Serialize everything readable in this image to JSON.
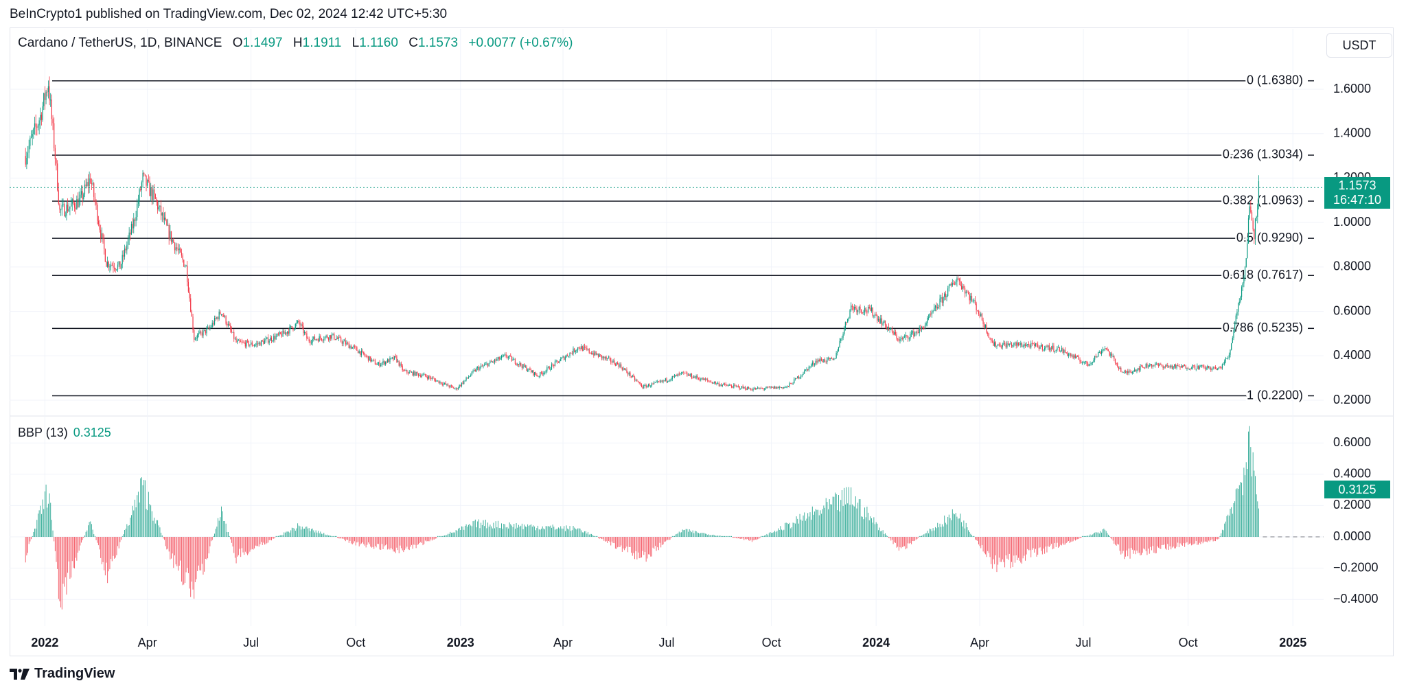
{
  "header": {
    "published_by": "BeInCrypto1 published on TradingView.com, Dec 02, 2024 12:42 UTC+5:30"
  },
  "symbol": {
    "name": "Cardano / TetherUS, 1D, BINANCE",
    "o_label": "O",
    "o": "1.1497",
    "h_label": "H",
    "h": "1.1911",
    "l_label": "L",
    "l": "1.1160",
    "c_label": "C",
    "c": "1.1573",
    "change": "+0.0077 (+0.67%)"
  },
  "currency_button": "USDT",
  "last_price": {
    "value": "1.1573",
    "countdown": "16:47:10"
  },
  "indicator": {
    "name": "BBP (13)",
    "value": "0.3125"
  },
  "footer": {
    "brand": "TradingView"
  },
  "colors": {
    "up": "#089981",
    "down": "#F23645",
    "fib_line": "#131722",
    "grid": "#f0f3fa"
  },
  "chart_data": [
    {
      "type": "candlestick",
      "x_axis": {
        "labels": [
          "2022",
          "Apr",
          "Jul",
          "Oct",
          "2023",
          "Apr",
          "Jul",
          "Oct",
          "2024",
          "Apr",
          "Jul",
          "Oct",
          "2025"
        ],
        "bold": [
          "2022",
          "2023",
          "2024",
          "2025"
        ]
      },
      "y_axis": {
        "ticks": [
          "1.6000",
          "1.4000",
          "1.2000",
          "1.0000",
          "0.8000",
          "0.6000",
          "0.4000",
          "0.2000"
        ],
        "ylim": [
          0.18,
          1.72
        ]
      },
      "fib_levels": [
        {
          "ratio": "0",
          "price": 1.638,
          "label": "0 (1.6380)"
        },
        {
          "ratio": "0.236",
          "price": 1.3034,
          "label": "0.236 (1.3034)"
        },
        {
          "ratio": "0.382",
          "price": 1.0963,
          "label": "0.382 (1.0963)"
        },
        {
          "ratio": "0.5",
          "price": 0.929,
          "label": "0.5 (0.9290)"
        },
        {
          "ratio": "0.618",
          "price": 0.7617,
          "label": "0.618 (0.7617)"
        },
        {
          "ratio": "0.786",
          "price": 0.5235,
          "label": "0.786 (0.5235)"
        },
        {
          "ratio": "1",
          "price": 0.22,
          "label": "1 (0.2200)"
        }
      ],
      "current_price": 1.1573,
      "price_path": [
        [
          "2021-12-15",
          1.3
        ],
        [
          "2021-12-28",
          1.48
        ],
        [
          "2022-01-04",
          1.63
        ],
        [
          "2022-01-10",
          1.3
        ],
        [
          "2022-01-14",
          1.05
        ],
        [
          "2022-01-22",
          1.07
        ],
        [
          "2022-02-01",
          1.1
        ],
        [
          "2022-02-10",
          1.2
        ],
        [
          "2022-02-24",
          0.82
        ],
        [
          "2022-03-08",
          0.8
        ],
        [
          "2022-03-20",
          1.0
        ],
        [
          "2022-03-28",
          1.2
        ],
        [
          "2022-04-08",
          1.1
        ],
        [
          "2022-04-20",
          0.95
        ],
        [
          "2022-05-05",
          0.8
        ],
        [
          "2022-05-12",
          0.48
        ],
        [
          "2022-05-25",
          0.52
        ],
        [
          "2022-06-05",
          0.6
        ],
        [
          "2022-06-18",
          0.46
        ],
        [
          "2022-07-05",
          0.45
        ],
        [
          "2022-07-30",
          0.5
        ],
        [
          "2022-08-12",
          0.55
        ],
        [
          "2022-08-20",
          0.47
        ],
        [
          "2022-09-10",
          0.49
        ],
        [
          "2022-10-01",
          0.43
        ],
        [
          "2022-10-20",
          0.36
        ],
        [
          "2022-11-05",
          0.39
        ],
        [
          "2022-11-12",
          0.33
        ],
        [
          "2022-12-01",
          0.31
        ],
        [
          "2022-12-28",
          0.25
        ],
        [
          "2023-01-15",
          0.34
        ],
        [
          "2023-02-10",
          0.4
        ],
        [
          "2023-03-10",
          0.31
        ],
        [
          "2023-04-15",
          0.44
        ],
        [
          "2023-05-20",
          0.36
        ],
        [
          "2023-06-10",
          0.26
        ],
        [
          "2023-06-25",
          0.28
        ],
        [
          "2023-07-15",
          0.32
        ],
        [
          "2023-08-18",
          0.27
        ],
        [
          "2023-09-15",
          0.25
        ],
        [
          "2023-10-15",
          0.26
        ],
        [
          "2023-11-10",
          0.38
        ],
        [
          "2023-11-25",
          0.38
        ],
        [
          "2023-12-10",
          0.62
        ],
        [
          "2023-12-28",
          0.6
        ],
        [
          "2024-01-22",
          0.47
        ],
        [
          "2024-02-10",
          0.52
        ],
        [
          "2024-03-01",
          0.67
        ],
        [
          "2024-03-12",
          0.75
        ],
        [
          "2024-03-28",
          0.63
        ],
        [
          "2024-04-13",
          0.45
        ],
        [
          "2024-05-10",
          0.45
        ],
        [
          "2024-06-10",
          0.43
        ],
        [
          "2024-07-05",
          0.36
        ],
        [
          "2024-07-20",
          0.44
        ],
        [
          "2024-08-05",
          0.32
        ],
        [
          "2024-08-28",
          0.36
        ],
        [
          "2024-09-20",
          0.35
        ],
        [
          "2024-10-10",
          0.35
        ],
        [
          "2024-10-28",
          0.34
        ],
        [
          "2024-11-06",
          0.4
        ],
        [
          "2024-11-12",
          0.58
        ],
        [
          "2024-11-20",
          0.78
        ],
        [
          "2024-11-24",
          1.08
        ],
        [
          "2024-11-28",
          0.95
        ],
        [
          "2024-12-02",
          1.16
        ]
      ]
    },
    {
      "type": "bar",
      "name": "BBP (13)",
      "y_axis": {
        "ticks": [
          "0.6000",
          "0.4000",
          "0.2000",
          "0.0000",
          "−0.2000",
          "−0.4000"
        ],
        "ylim": [
          -0.5,
          0.66
        ]
      },
      "values_path": [
        [
          "2021-12-15",
          -0.15
        ],
        [
          "2022-01-04",
          0.36
        ],
        [
          "2022-01-14",
          -0.45
        ],
        [
          "2022-02-10",
          0.12
        ],
        [
          "2022-02-24",
          -0.3
        ],
        [
          "2022-03-28",
          0.38
        ],
        [
          "2022-04-20",
          -0.12
        ],
        [
          "2022-05-12",
          -0.42
        ],
        [
          "2022-06-05",
          0.18
        ],
        [
          "2022-06-18",
          -0.15
        ],
        [
          "2022-08-12",
          0.08
        ],
        [
          "2022-10-01",
          -0.05
        ],
        [
          "2022-11-12",
          -0.1
        ],
        [
          "2023-01-15",
          0.1
        ],
        [
          "2023-04-15",
          0.06
        ],
        [
          "2023-06-10",
          -0.16
        ],
        [
          "2023-07-15",
          0.05
        ],
        [
          "2023-09-15",
          -0.03
        ],
        [
          "2023-12-10",
          0.3
        ],
        [
          "2024-01-22",
          -0.1
        ],
        [
          "2024-03-12",
          0.18
        ],
        [
          "2024-04-13",
          -0.22
        ],
        [
          "2024-07-20",
          0.05
        ],
        [
          "2024-08-05",
          -0.13
        ],
        [
          "2024-10-28",
          -0.02
        ],
        [
          "2024-11-12",
          0.32
        ],
        [
          "2024-11-24",
          0.62
        ],
        [
          "2024-12-02",
          0.3125
        ]
      ],
      "current_value": 0.3125
    }
  ]
}
